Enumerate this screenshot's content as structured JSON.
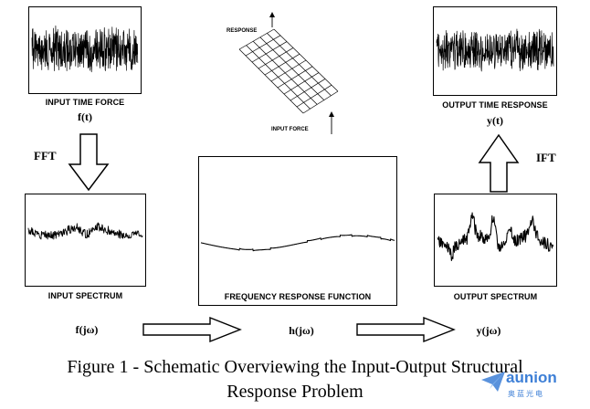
{
  "labels": {
    "input_time_force": "INPUT TIME FORCE",
    "input_time_force_sym": "f(t)",
    "input_spectrum": "INPUT SPECTRUM",
    "input_spectrum_sym": "f(jω)",
    "frf": "FREQUENCY RESPONSE FUNCTION",
    "frf_sym": "h(jω)",
    "output_spectrum": "OUTPUT SPECTRUM",
    "output_spectrum_sym": "y(jω)",
    "output_time_response": "OUTPUT TIME RESPONSE",
    "output_time_response_sym": "y(t)",
    "fft": "FFT",
    "ift": "IFT",
    "response": "RESPONSE",
    "input_force": "INPUT FORCE"
  },
  "caption": {
    "line1": "Figure 1 - Schematic Overviewing the Input-Output Structural",
    "line2": "Response Problem"
  },
  "watermark": {
    "text": "aunion",
    "sub": "奥蓝光电",
    "color": "#3d7fd6"
  }
}
